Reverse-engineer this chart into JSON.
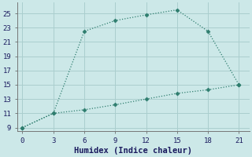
{
  "xlabel": "Humidex (Indice chaleur)",
  "line1_x": [
    0,
    3,
    6,
    9,
    12,
    15,
    18,
    21
  ],
  "line1_y": [
    9,
    11,
    22.5,
    24,
    24.8,
    25.5,
    22.5,
    15
  ],
  "line2_x": [
    0,
    3,
    6,
    9,
    12,
    15,
    18,
    21
  ],
  "line2_y": [
    9,
    11,
    11.5,
    12.2,
    13,
    13.8,
    14.3,
    15
  ],
  "line_color": "#2e7d6e",
  "marker": "D",
  "marker_size": 2.5,
  "bg_color": "#cce8e8",
  "grid_color": "#aacece",
  "xlim": [
    -0.5,
    22
  ],
  "ylim": [
    8.5,
    26.5
  ],
  "xticks": [
    0,
    3,
    6,
    9,
    12,
    15,
    18,
    21
  ],
  "yticks": [
    9,
    11,
    13,
    15,
    17,
    19,
    21,
    23,
    25
  ],
  "xlabel_fontsize": 7.5,
  "tick_fontsize": 6.5
}
